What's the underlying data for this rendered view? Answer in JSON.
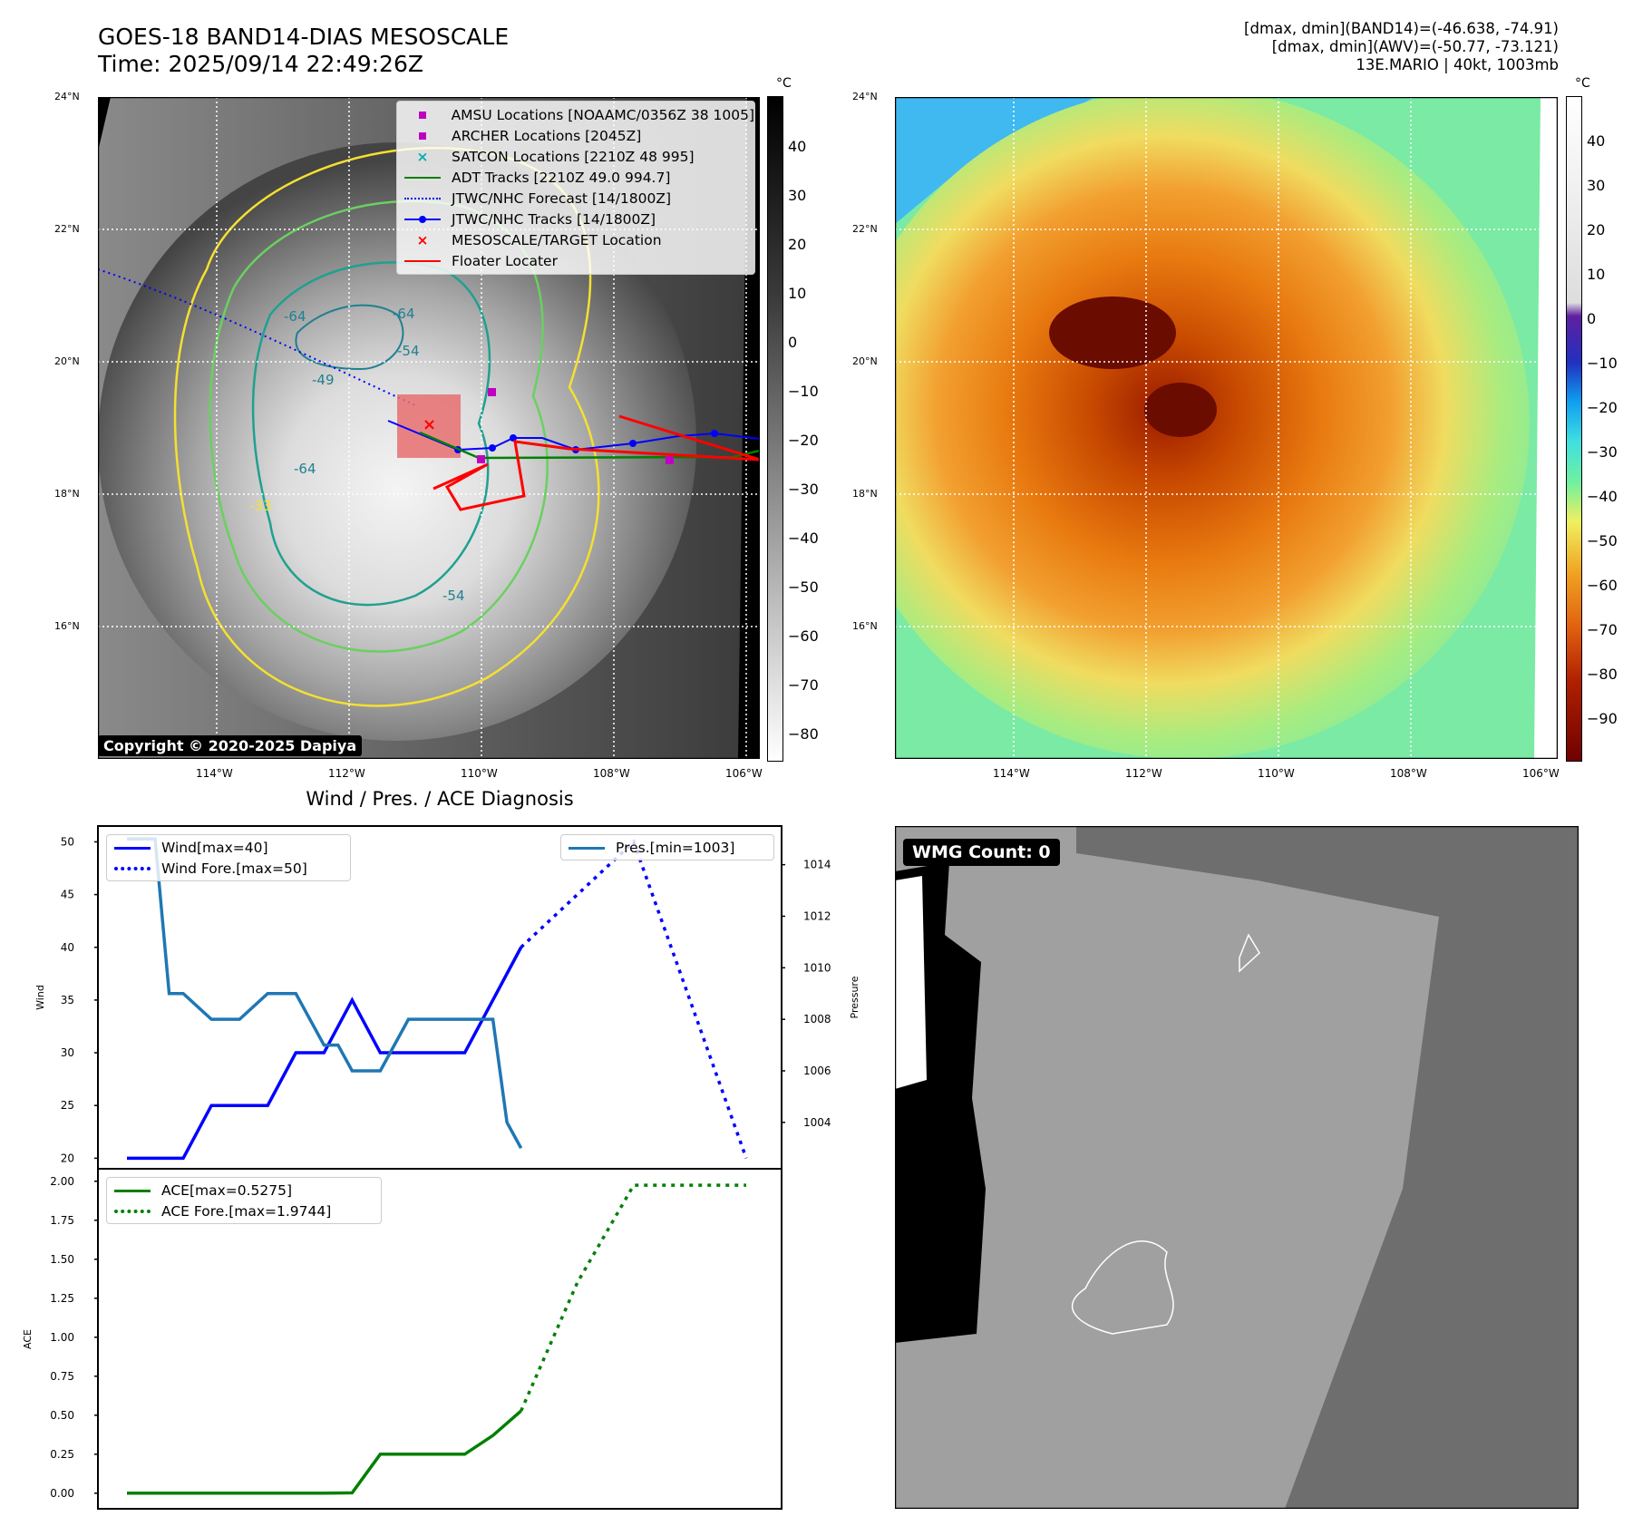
{
  "header": {
    "title_line1": "GOES-18 BAND14-DIAS MESOSCALE",
    "title_line2": "Time: 2025/09/14 22:49:26Z",
    "right_line1": "[dmax, dmin](BAND14)=(-46.638, -74.91)",
    "right_line2": "[dmax, dmin](AWV)=(-50.77, -73.121)",
    "right_line3": "13E.MARIO | 40kt, 1003mb"
  },
  "map": {
    "lat_labels": [
      "24°N",
      "22°N",
      "20°N",
      "18°N",
      "16°N"
    ],
    "lon_labels": [
      "114°W",
      "112°W",
      "110°W",
      "108°W",
      "106°W"
    ],
    "copyright": "Copyright © 2020-2025 Dapiya",
    "contour_labels": [
      "-64",
      "-64",
      "-49",
      "-64",
      "-54",
      "-54",
      "-33"
    ]
  },
  "legend": {
    "items": [
      {
        "label": "AMSU Locations [NOAAMC/0356Z 38 1005]",
        "color": "#c000c0",
        "kind": "square"
      },
      {
        "label": "ARCHER Locations [2045Z]",
        "color": "#c000c0",
        "kind": "square"
      },
      {
        "label": "SATCON Locations [2210Z 48 995]",
        "color": "#00b0b0",
        "kind": "x"
      },
      {
        "label": "ADT Tracks [2210Z 49.0 994.7]",
        "color": "#008000",
        "kind": "line"
      },
      {
        "label": "JTWC/NHC Forecast [14/1800Z]",
        "color": "#0000ff",
        "kind": "dotted"
      },
      {
        "label": "JTWC/NHC Tracks [14/1800Z]",
        "color": "#0000ff",
        "kind": "line-dot"
      },
      {
        "label": "MESOSCALE/TARGET Location",
        "color": "#ff0000",
        "kind": "x"
      },
      {
        "label": "Floater Locater",
        "color": "#ff0000",
        "kind": "line"
      }
    ]
  },
  "colorbar_left": {
    "unit": "°C",
    "ticks": [
      "40",
      "30",
      "20",
      "10",
      "0",
      "−10",
      "−20",
      "−30",
      "−40",
      "−50",
      "−60",
      "−70",
      "−80"
    ]
  },
  "colorbar_right": {
    "unit": "°C",
    "ticks": [
      "40",
      "30",
      "20",
      "10",
      "0",
      "−10",
      "−20",
      "−30",
      "−40",
      "−50",
      "−60",
      "−70",
      "−80",
      "−90"
    ]
  },
  "diagnosis": {
    "title": "Wind / Pres. / ACE Diagnosis"
  },
  "wmg": {
    "badge": "WMG Count: 0"
  },
  "chart_data": [
    {
      "type": "line",
      "ylabel": "Wind",
      "ylabel_right": "Pressure",
      "ylim": [
        19,
        51.5
      ],
      "ylim_right": [
        1002.2,
        1015.5
      ],
      "yticks": [
        20,
        25,
        30,
        35,
        40,
        45,
        50
      ],
      "yticks_right": [
        1004,
        1006,
        1008,
        1010,
        1012,
        1014
      ],
      "series": [
        {
          "name": "Wind[max=40]",
          "color": "#0000ff",
          "style": "solid",
          "x": [
            0,
            1,
            2,
            3,
            4,
            5,
            6,
            7,
            8,
            9,
            10,
            11,
            12,
            13,
            14
          ],
          "y": [
            20,
            20,
            20,
            25,
            25,
            25,
            30,
            30,
            35,
            30,
            30,
            30,
            30,
            35,
            40
          ]
        },
        {
          "name": "Wind Fore.[max=50]",
          "color": "#0000ff",
          "style": "dotted",
          "x": [
            14,
            16,
            18,
            20,
            22
          ],
          "y": [
            40,
            45,
            50,
            35,
            20
          ]
        },
        {
          "name": "Pres.[min=1003]",
          "color": "#1f77b4",
          "style": "solid",
          "axis": "right",
          "x": [
            0,
            1,
            1.5,
            2,
            3,
            4,
            5,
            6,
            7,
            7.5,
            8,
            9,
            10,
            11,
            12,
            13,
            13.5,
            14
          ],
          "y": [
            1015,
            1015,
            1009,
            1009,
            1008,
            1008,
            1009,
            1009,
            1007,
            1007,
            1006,
            1006,
            1008,
            1008,
            1008,
            1008,
            1004,
            1003
          ]
        }
      ]
    },
    {
      "type": "line",
      "ylabel": "ACE",
      "ylim": [
        -0.1,
        2.08
      ],
      "yticks": [
        "0.00",
        "0.25",
        "0.50",
        "0.75",
        "1.00",
        "1.25",
        "1.50",
        "1.75",
        "2.00"
      ],
      "series": [
        {
          "name": "ACE[max=0.5275]",
          "color": "#008000",
          "style": "solid",
          "x": [
            0,
            1,
            2,
            3,
            4,
            5,
            6,
            7,
            8,
            9,
            10,
            11,
            12,
            13,
            14
          ],
          "y": [
            0,
            0,
            0,
            0,
            0,
            0,
            0,
            0,
            0.0025,
            0.25,
            0.25,
            0.25,
            0.25,
            0.37,
            0.5275
          ]
        },
        {
          "name": "ACE Fore.[max=1.9744]",
          "color": "#008000",
          "style": "dotted",
          "x": [
            14,
            16,
            18,
            20,
            22
          ],
          "y": [
            0.5275,
            1.35,
            1.9744,
            1.9744,
            1.9744
          ]
        }
      ]
    }
  ]
}
